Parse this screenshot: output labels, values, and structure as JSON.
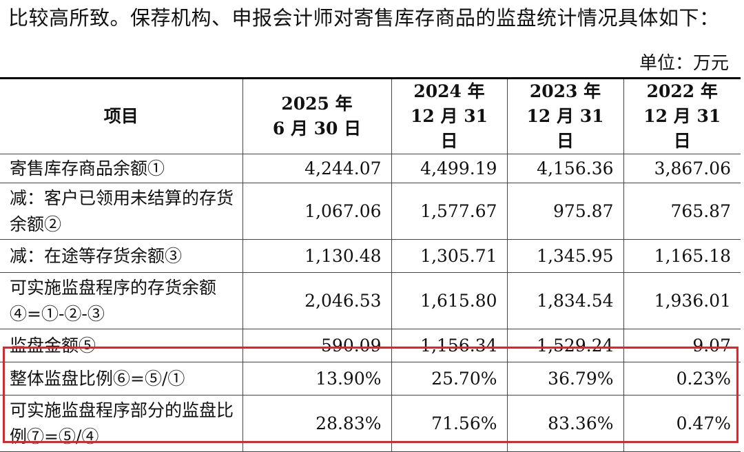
{
  "intro_text": "比较高所致。保荐机构、申报会计师对寄售库存商品的监盘统计情况具体如下：",
  "unit_label": "单位：万元",
  "table": {
    "header": {
      "item": "项目",
      "periods": [
        {
          "year": "2025 年",
          "date": "6 月 30 日"
        },
        {
          "year": "2024 年",
          "date": "12 月 31 日"
        },
        {
          "year": "2023 年",
          "date": "12 月 31 日"
        },
        {
          "year": "2022 年",
          "date": "12 月 31 日"
        }
      ]
    },
    "rows": [
      {
        "label": "寄售库存商品余额①",
        "values": [
          "4,244.07",
          "4,499.19",
          "4,156.36",
          "3,867.06"
        ]
      },
      {
        "label": "减：客户已领用未结算的存货余额②",
        "values": [
          "1,067.06",
          "1,577.67",
          "975.87",
          "765.87"
        ]
      },
      {
        "label": "减：在途等存货余额③",
        "values": [
          "1,130.48",
          "1,305.71",
          "1,345.95",
          "1,165.18"
        ]
      },
      {
        "label": "可实施监盘程序的存货余额④=①-②-③",
        "values": [
          "2,046.53",
          "1,615.80",
          "1,834.54",
          "1,936.01"
        ]
      },
      {
        "label": "监盘金额⑤",
        "values": [
          "590.09",
          "1,156.34",
          "1,529.24",
          "9.07"
        ]
      },
      {
        "label": "整体监盘比例⑥=⑤/①",
        "values": [
          "13.90%",
          "25.70%",
          "36.79%",
          "0.23%"
        ]
      },
      {
        "label": "可实施监盘程序部分的监盘比例⑦=⑤/④",
        "values": [
          "28.83%",
          "71.56%",
          "83.36%",
          "0.47%"
        ]
      }
    ]
  },
  "highlight_color": "#e0242a"
}
